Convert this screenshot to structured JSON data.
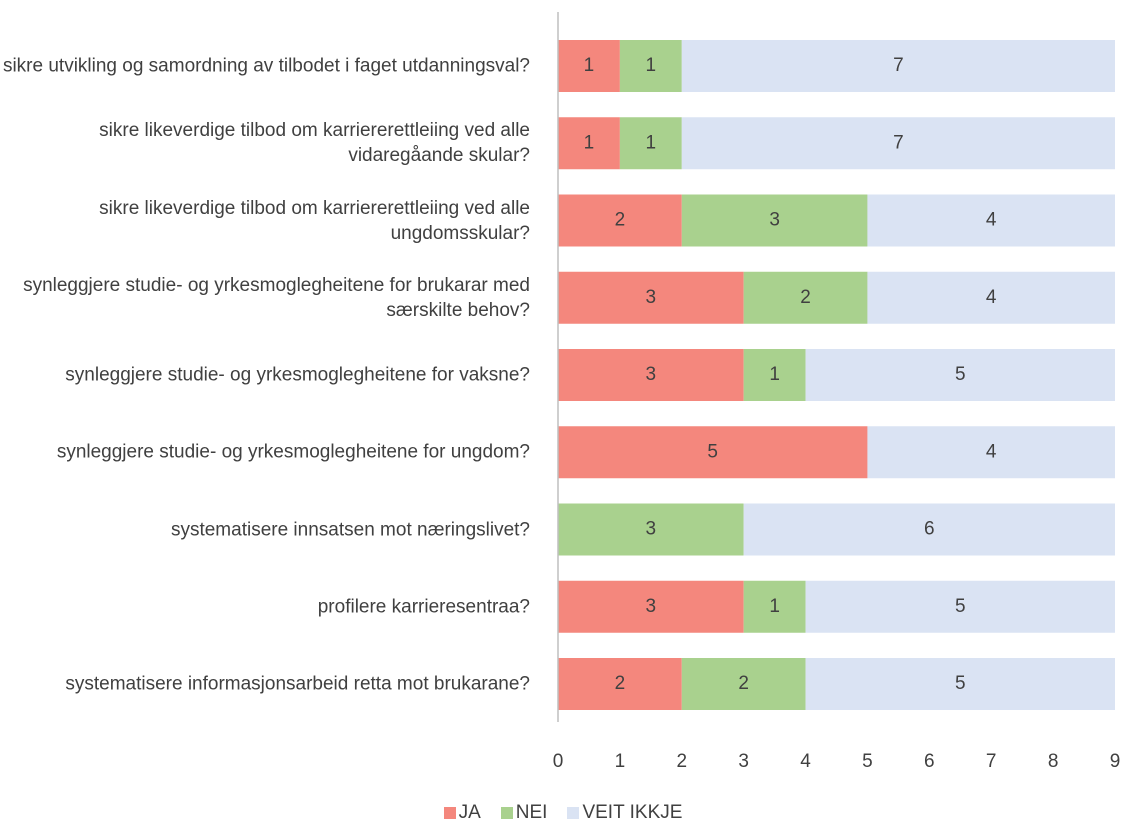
{
  "chart_data": {
    "type": "stacked-bar-horizontal",
    "categories": [
      "sikre utvikling og samordning av tilbodet i faget utdanningsval?",
      "sikre likeverdige tilbod om karriererettleiing ved alle vidaregåande skular?",
      "sikre likeverdige tilbod om karriererettleiing ved alle ungdomsskular?",
      "synleggjere studie- og yrkesmoglegheitene for brukarar med særskilte behov?",
      "synleggjere studie- og yrkesmoglegheitene for vaksne?",
      "synleggjere studie- og yrkesmoglegheitene for ungdom?",
      "systematisere innsatsen mot næringslivet?",
      "profilere karrieresentraa?",
      "systematisere informasjonsarbeid retta mot brukarane?"
    ],
    "series": [
      {
        "name": "JA",
        "color": "#f4877d",
        "values": [
          1,
          1,
          2,
          3,
          3,
          5,
          null,
          3,
          2
        ]
      },
      {
        "name": "NEI",
        "color": "#a9d18e",
        "values": [
          1,
          1,
          3,
          2,
          1,
          null,
          3,
          1,
          2
        ]
      },
      {
        "name": "VEIT IKKJE",
        "color": "#dae3f3",
        "values": [
          7,
          7,
          4,
          4,
          5,
          4,
          6,
          5,
          5
        ]
      }
    ],
    "xlim": [
      0,
      9
    ],
    "xticks": [
      0,
      1,
      2,
      3,
      4,
      5,
      6,
      7,
      8,
      9
    ],
    "legend": "bottom",
    "data_labels": true
  }
}
